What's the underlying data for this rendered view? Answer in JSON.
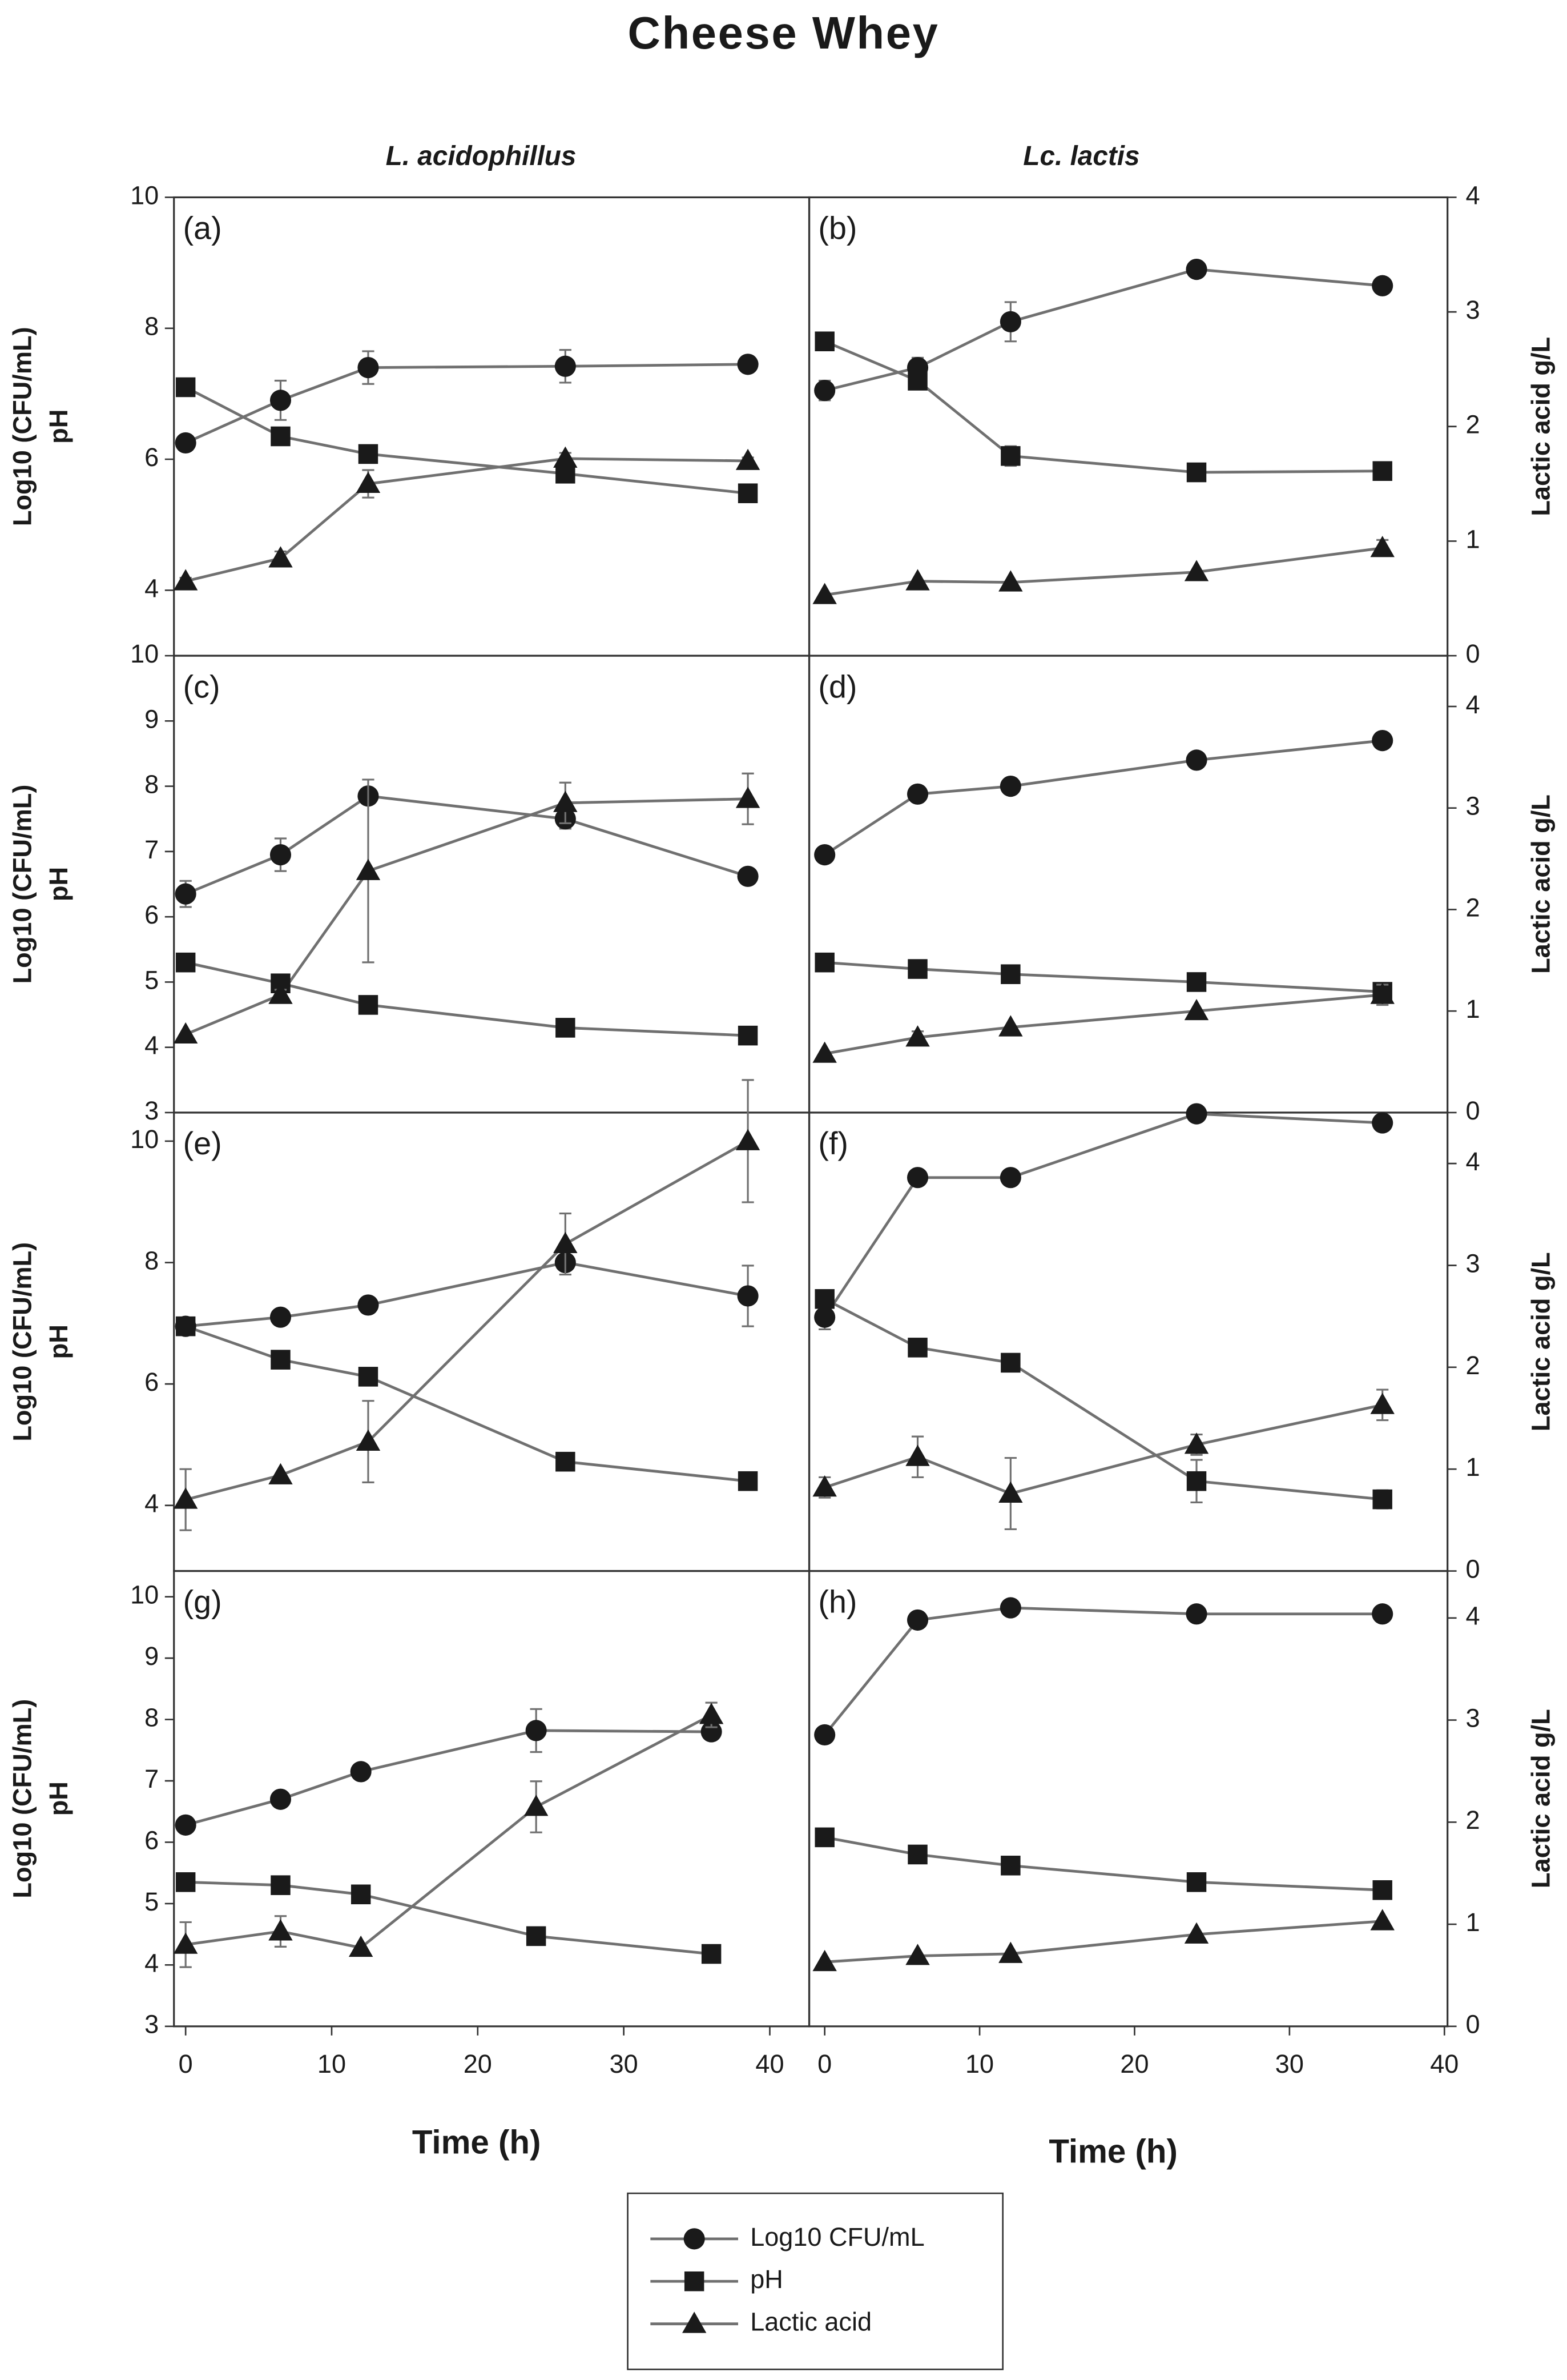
{
  "title": "Cheese Whey",
  "columns": [
    "L. acidophillus",
    "Lc. lactis"
  ],
  "legend": [
    {
      "name": "Log10 CFU/mL",
      "marker": "circle"
    },
    {
      "name": "pH",
      "marker": "square"
    },
    {
      "name": "Lactic acid",
      "marker": "triangle"
    }
  ],
  "chart_data": [
    {
      "type": "line",
      "label": "(a)",
      "ylabel": [
        "Log10 (CFU/mL)",
        "pH"
      ],
      "xlim": [
        -0.8,
        42.7
      ],
      "ylim": [
        3,
        10
      ],
      "yticks": [
        4,
        6,
        8,
        10
      ],
      "y2lim": [
        0,
        4
      ],
      "x": [
        0,
        6.5,
        12.5,
        26,
        38.5
      ],
      "series": [
        {
          "marker": "circle",
          "color": "#1a1a1a",
          "line_color": "#707070",
          "values": [
            6.25,
            6.9,
            7.4,
            7.42,
            7.45
          ],
          "errors": [
            0.05,
            0.3,
            0.25,
            0.25,
            0.08
          ]
        },
        {
          "marker": "square",
          "color": "#1a1a1a",
          "line_color": "#707070",
          "values": [
            7.1,
            6.35,
            6.08,
            5.78,
            5.48
          ]
        },
        {
          "marker": "triangle",
          "axis": "y2",
          "color": "#1a1a1a",
          "line_color": "#707070",
          "values": [
            0.65,
            0.85,
            1.5,
            1.72,
            1.7
          ],
          "errors": [
            0.03,
            0.06,
            0.12,
            0.05,
            0.03
          ]
        }
      ]
    },
    {
      "type": "line",
      "label": "(b)",
      "y2label": "Lactic acid g/L",
      "xlim": [
        -1,
        40.2
      ],
      "ylim": [
        3,
        10
      ],
      "y2lim": [
        0,
        4
      ],
      "y2ticks": [
        0,
        1,
        2,
        3,
        4
      ],
      "x": [
        0,
        6,
        12,
        24,
        36
      ],
      "series": [
        {
          "marker": "circle",
          "color": "#1a1a1a",
          "line_color": "#707070",
          "values": [
            7.05,
            7.4,
            8.1,
            8.9,
            8.65
          ],
          "errors": [
            0.15,
            0.15,
            0.3,
            0.05,
            0.05
          ]
        },
        {
          "marker": "square",
          "color": "#1a1a1a",
          "line_color": "#707070",
          "values": [
            7.8,
            7.2,
            6.05,
            5.8,
            5.82
          ],
          "errors": [
            0.05,
            0.1,
            0.15,
            0.05,
            0.05
          ]
        },
        {
          "marker": "triangle",
          "axis": "y2",
          "color": "#1a1a1a",
          "line_color": "#707070",
          "values": [
            0.53,
            0.65,
            0.64,
            0.73,
            0.94
          ],
          "errors": [
            null,
            null,
            null,
            null,
            0.07
          ]
        }
      ]
    },
    {
      "type": "line",
      "label": "(c)",
      "ylabel": [
        "Log10 (CFU/mL)",
        "pH"
      ],
      "xlim": [
        -0.8,
        42.7
      ],
      "ylim": [
        3,
        10
      ],
      "yticks": [
        3,
        4,
        5,
        6,
        7,
        8,
        9,
        10
      ],
      "y2lim": [
        0,
        4.5
      ],
      "x": [
        0,
        6.5,
        12.5,
        26,
        38.5
      ],
      "series": [
        {
          "marker": "circle",
          "color": "#1a1a1a",
          "line_color": "#707070",
          "values": [
            6.35,
            6.95,
            7.85,
            7.5,
            6.62
          ],
          "errors": [
            0.2,
            0.25,
            null,
            0.15,
            null
          ]
        },
        {
          "marker": "square",
          "color": "#1a1a1a",
          "line_color": "#707070",
          "values": [
            5.3,
            4.98,
            4.65,
            4.3,
            4.18
          ]
        },
        {
          "marker": "triangle",
          "axis": "y2",
          "color": "#1a1a1a",
          "line_color": "#707070",
          "values": [
            0.77,
            1.16,
            2.38,
            3.05,
            3.09
          ],
          "errors": [
            null,
            0.05,
            0.9,
            0.2,
            0.25
          ]
        }
      ]
    },
    {
      "type": "line",
      "label": "(d)",
      "y2label": "Lactic acid g/L",
      "xlim": [
        -1,
        40.2
      ],
      "ylim": [
        3,
        10
      ],
      "y2lim": [
        0,
        4.5
      ],
      "y2ticks": [
        0,
        1,
        2,
        3,
        4
      ],
      "x": [
        0,
        6,
        12,
        24,
        36
      ],
      "series": [
        {
          "marker": "circle",
          "color": "#1a1a1a",
          "line_color": "#707070",
          "values": [
            6.95,
            7.88,
            8.0,
            8.4,
            8.7
          ]
        },
        {
          "marker": "square",
          "color": "#1a1a1a",
          "line_color": "#707070",
          "values": [
            5.3,
            5.2,
            5.12,
            5.0,
            4.85
          ]
        },
        {
          "marker": "triangle",
          "axis": "y2",
          "color": "#1a1a1a",
          "line_color": "#707070",
          "values": [
            0.58,
            0.74,
            0.84,
            1.0,
            1.16
          ],
          "errors": [
            null,
            0.06,
            null,
            null,
            0.1
          ]
        }
      ]
    },
    {
      "type": "line",
      "label": "(e)",
      "ylabel": [
        "Log10 (CFU/mL)",
        "pH"
      ],
      "xlim": [
        -0.8,
        42.7
      ],
      "ylim": [
        2.92,
        10.47
      ],
      "yticks": [
        4,
        6,
        8,
        10
      ],
      "y2lim": [
        0,
        4.5
      ],
      "x": [
        0,
        6.5,
        12.5,
        26,
        38.5
      ],
      "series": [
        {
          "marker": "circle",
          "color": "#1a1a1a",
          "line_color": "#707070",
          "values": [
            6.95,
            7.1,
            7.3,
            8.0,
            7.45
          ],
          "errors": [
            null,
            0.1,
            null,
            null,
            0.5
          ]
        },
        {
          "marker": "square",
          "color": "#1a1a1a",
          "line_color": "#707070",
          "values": [
            6.95,
            6.4,
            6.12,
            4.72,
            4.4
          ]
        },
        {
          "marker": "triangle",
          "axis": "y2",
          "color": "#1a1a1a",
          "line_color": "#707070",
          "values": [
            0.7,
            0.94,
            1.27,
            3.21,
            4.22
          ],
          "errors": [
            0.3,
            null,
            0.4,
            0.3,
            0.6
          ]
        }
      ]
    },
    {
      "type": "line",
      "label": "(f)",
      "y2label": "Lactic acid g/L",
      "xlim": [
        -1,
        40.2
      ],
      "ylim": [
        2.92,
        10.47
      ],
      "y2lim": [
        0,
        4.5
      ],
      "y2ticks": [
        0,
        1,
        2,
        3,
        4
      ],
      "x": [
        0,
        6,
        12,
        24,
        36
      ],
      "series": [
        {
          "marker": "circle",
          "color": "#1a1a1a",
          "line_color": "#707070",
          "values": [
            7.1,
            9.4,
            9.4,
            10.45,
            10.3
          ],
          "errors": [
            0.2,
            null,
            null,
            null,
            null
          ]
        },
        {
          "marker": "square",
          "color": "#1a1a1a",
          "line_color": "#707070",
          "values": [
            7.4,
            6.6,
            6.35,
            4.4,
            4.1
          ],
          "errors": [
            null,
            null,
            null,
            0.35,
            0.15
          ]
        },
        {
          "marker": "triangle",
          "axis": "y2",
          "color": "#1a1a1a",
          "line_color": "#707070",
          "values": [
            0.82,
            1.12,
            0.76,
            1.24,
            1.63
          ],
          "errors": [
            0.1,
            0.2,
            0.35,
            0.1,
            0.15
          ]
        }
      ]
    },
    {
      "type": "line",
      "label": "(g)",
      "ylabel": [
        "Log10 (CFU/mL)",
        "pH"
      ],
      "xlabel": "Time (h)",
      "xlim": [
        -0.8,
        42.7
      ],
      "xticks": [
        0,
        10,
        20,
        30,
        40
      ],
      "ylim": [
        3,
        10.42
      ],
      "yticks": [
        3,
        4,
        5,
        6,
        7,
        8,
        9,
        10
      ],
      "y2lim": [
        0,
        4.46
      ],
      "x": [
        0,
        6.5,
        12,
        24,
        36
      ],
      "series": [
        {
          "marker": "circle",
          "color": "#1a1a1a",
          "line_color": "#707070",
          "values": [
            6.28,
            6.7,
            7.15,
            7.82,
            7.8
          ],
          "errors": [
            null,
            null,
            null,
            0.35,
            null
          ]
        },
        {
          "marker": "square",
          "color": "#1a1a1a",
          "line_color": "#707070",
          "values": [
            5.35,
            5.3,
            5.15,
            4.47,
            4.18
          ]
        },
        {
          "marker": "triangle",
          "axis": "y2",
          "color": "#1a1a1a",
          "line_color": "#707070",
          "values": [
            0.8,
            0.93,
            0.77,
            2.15,
            3.05
          ],
          "errors": [
            0.22,
            0.15,
            null,
            0.25,
            0.12
          ]
        }
      ]
    },
    {
      "type": "line",
      "label": "(h)",
      "y2label": "Lactic acid g/L",
      "xlabel": "Time (h)",
      "xlim": [
        -1,
        40.2
      ],
      "xticks": [
        0,
        10,
        20,
        30,
        40
      ],
      "ylim": [
        3,
        10.42
      ],
      "y2lim": [
        0,
        4.46
      ],
      "y2ticks": [
        0,
        1,
        2,
        3,
        4
      ],
      "x": [
        0,
        6,
        12,
        24,
        36
      ],
      "series": [
        {
          "marker": "circle",
          "color": "#1a1a1a",
          "line_color": "#707070",
          "values": [
            7.75,
            9.62,
            9.82,
            9.72,
            9.72
          ]
        },
        {
          "marker": "square",
          "color": "#1a1a1a",
          "line_color": "#707070",
          "values": [
            6.08,
            5.8,
            5.62,
            5.35,
            5.22
          ]
        },
        {
          "marker": "triangle",
          "axis": "y2",
          "color": "#1a1a1a",
          "line_color": "#707070",
          "values": [
            0.63,
            0.69,
            0.71,
            0.9,
            1.03
          ]
        }
      ]
    }
  ]
}
